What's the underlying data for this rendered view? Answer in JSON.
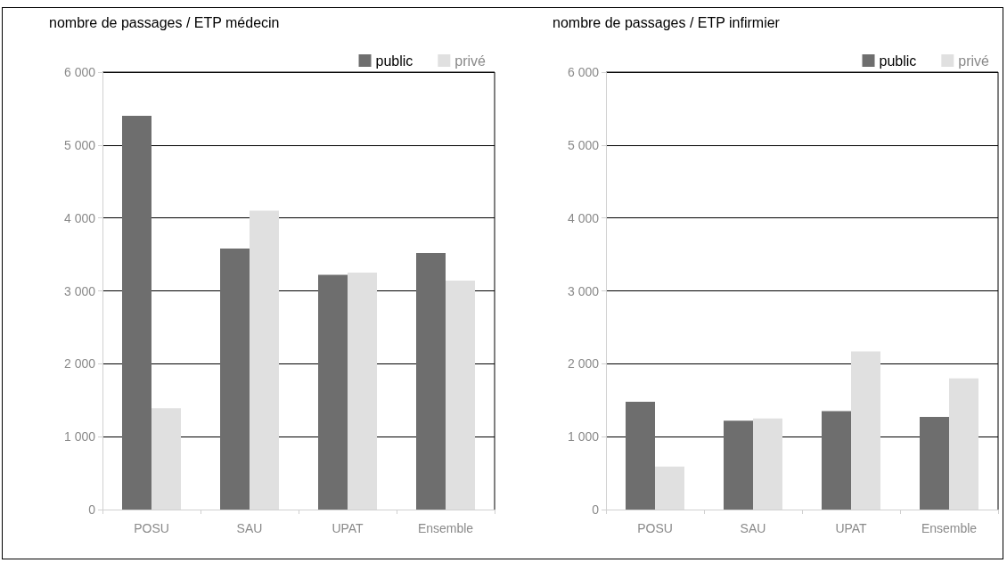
{
  "chart_data": [
    {
      "type": "bar",
      "title": "nombre de passages / ETP médecin",
      "categories": [
        "POSU",
        "SAU",
        "UPAT",
        "Ensemble"
      ],
      "series": [
        {
          "name": "public",
          "color": "#6e6e6e",
          "values": [
            5400,
            3580,
            3220,
            3520
          ]
        },
        {
          "name": "privé",
          "color": "#e0e0e0",
          "values": [
            1390,
            4100,
            3250,
            3140
          ]
        }
      ],
      "ylim": [
        0,
        6000
      ],
      "yticks": [
        0,
        {
          "value": 1000,
          "label": "1 000"
        },
        {
          "value": 2000,
          "label": "2 000"
        },
        {
          "value": 3000,
          "label": "3 000"
        },
        {
          "value": 4000,
          "label": "4 000"
        },
        {
          "value": 5000,
          "label": "5 000"
        },
        {
          "value": 6000,
          "label": "6 000"
        }
      ],
      "grid": "y",
      "legend": "top right"
    },
    {
      "type": "bar",
      "title": "nombre de passages / ETP infirmier",
      "categories": [
        "POSU",
        "SAU",
        "UPAT",
        "Ensemble"
      ],
      "series": [
        {
          "name": "public",
          "color": "#6e6e6e",
          "values": [
            1480,
            1220,
            1350,
            1270
          ]
        },
        {
          "name": "privé",
          "color": "#e0e0e0",
          "values": [
            590,
            1250,
            2170,
            1800
          ]
        }
      ],
      "ylim": [
        0,
        6000
      ],
      "yticks": [
        0,
        {
          "value": 1000,
          "label": "1 000"
        },
        {
          "value": 2000,
          "label": "2 000"
        },
        {
          "value": 3000,
          "label": "3 000"
        },
        {
          "value": 4000,
          "label": "4 000"
        },
        {
          "value": 5000,
          "label": "5 000"
        },
        {
          "value": 6000,
          "label": "6 000"
        }
      ],
      "grid": "y",
      "legend": "top right"
    }
  ]
}
